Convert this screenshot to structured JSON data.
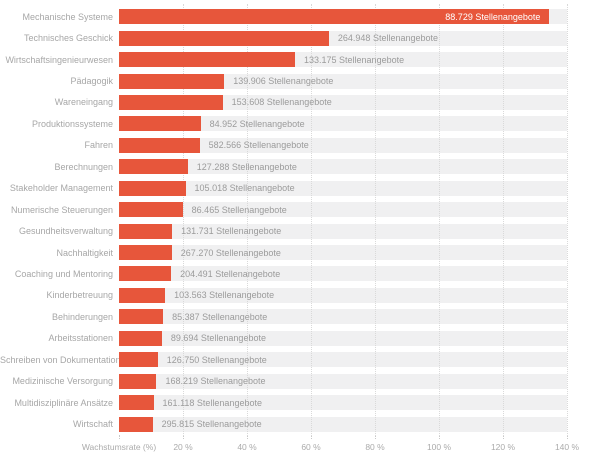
{
  "chart_data": {
    "type": "bar",
    "orientation": "horizontal",
    "title": "",
    "xlabel": "Wachstumsrate (%)",
    "ylabel": "",
    "xlim": [
      0,
      140
    ],
    "grid": "vertical-dotted",
    "legend": "none",
    "bar_color": "#e7563b",
    "track_color": "#f0f0f1",
    "inside_label_color": "#ffffff",
    "outside_label_color": "#9b9b9b",
    "categories": [
      "Mechanische Systeme",
      "Technisches Geschick",
      "Wirtschaftsingenieurwesen",
      "Pädagogik",
      "Wareneingang",
      "Produktionssysteme",
      "Fahren",
      "Berechnungen",
      "Stakeholder Management",
      "Numerische Steuerungen",
      "Gesundheitsverwaltung",
      "Nachhaltigkeit",
      "Coaching und Mentoring",
      "Kinderbetreuung",
      "Behinderungen",
      "Arbeitsstationen",
      "Schreiben von Dokumentation",
      "Medizinische Versorgung",
      "Multidisziplinäre Ansätze",
      "Wirtschaft"
    ],
    "series": [
      {
        "name": "Wachstumsrate (%)",
        "values": [
          134.5,
          65.6,
          55.0,
          32.9,
          32.4,
          25.5,
          25.2,
          21.5,
          20.8,
          19.9,
          16.6,
          16.5,
          16.3,
          14.4,
          13.8,
          13.4,
          12.1,
          11.7,
          10.8,
          10.5
        ]
      }
    ],
    "bar_labels": [
      "88.729 Stellenangebote",
      "264.948 Stellenangebote",
      "133.175 Stellenangebote",
      "139.906 Stellenangebote",
      "153.608 Stellenangebote",
      "84.952 Stellenangebote",
      "582.566 Stellenangebote",
      "127.288 Stellenangebote",
      "105.018 Stellenangebote",
      "86.465 Stellenangebote",
      "131.731 Stellenangebote",
      "267.270 Stellenangebote",
      "204.491 Stellenangebote",
      "103.563 Stellenangebote",
      "85.387 Stellenangebote",
      "89.694 Stellenangebote",
      "126.750 Stellenangebote",
      "168.219 Stellenangebote",
      "161.118 Stellenangebote",
      "295.815 Stellenangebote"
    ],
    "label_inside_indexes": [
      0
    ],
    "x_axis": {
      "title_tick_pct": 0,
      "tick_pcts": [
        20,
        40,
        60,
        80,
        100,
        120,
        140
      ],
      "tick_labels": [
        "20 %",
        "40 %",
        "60 %",
        "80 %",
        "100 %",
        "120 %",
        "140 %"
      ]
    }
  }
}
